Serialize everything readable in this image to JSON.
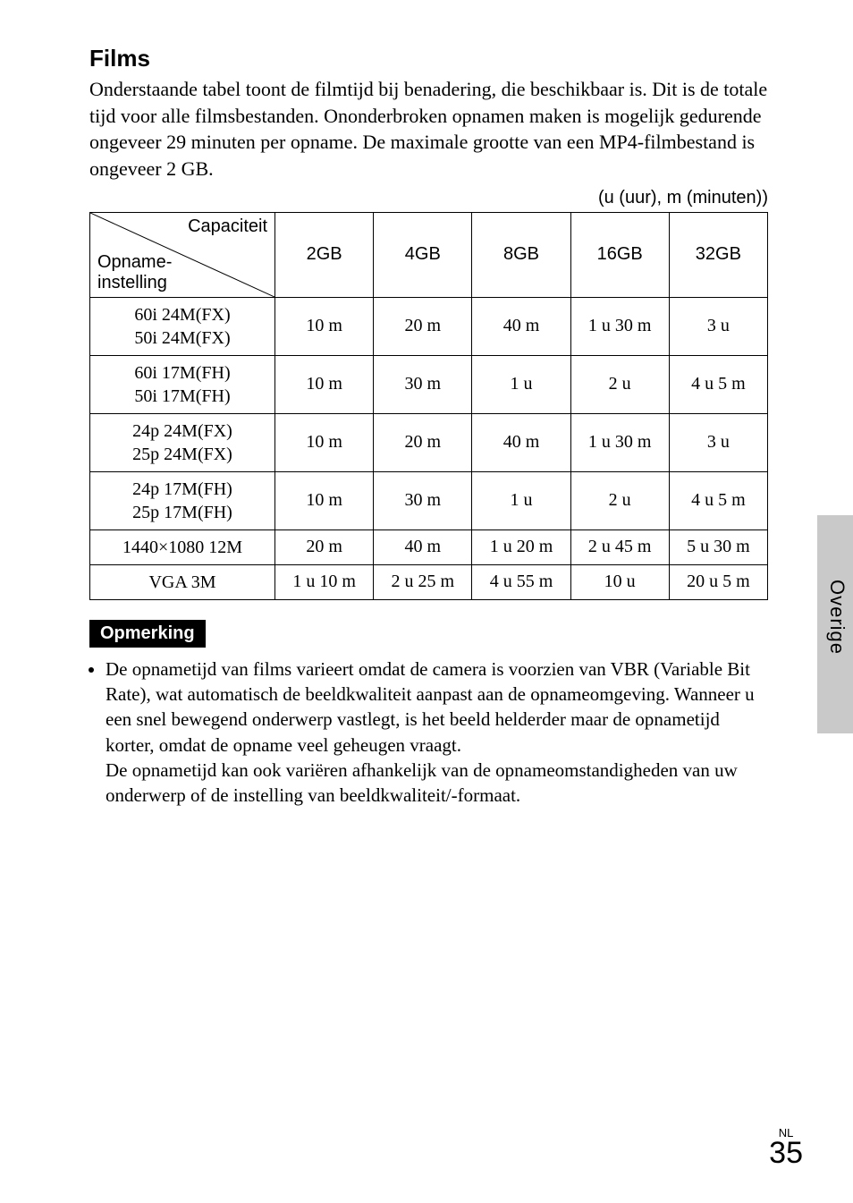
{
  "section": {
    "title": "Films",
    "intro": "Onderstaande tabel toont de filmtijd bij benadering, die beschikbaar is. Dit is de totale tijd voor alle filmsbestanden. Ononderbroken opnamen maken is mogelijk gedurende ongeveer 29 minuten per opname. De maximale grootte van een MP4-filmbestand is ongeveer 2 GB.",
    "units": "(u (uur), m (minuten))"
  },
  "table": {
    "diag_top": "Capaciteit",
    "diag_bottom_l1": "Opname-",
    "diag_bottom_l2": "instelling",
    "columns": [
      "2GB",
      "4GB",
      "8GB",
      "16GB",
      "32GB"
    ],
    "rows": [
      {
        "label_l1": "60i 24M(FX)",
        "label_l2": "50i 24M(FX)",
        "cells": [
          "10 m",
          "20 m",
          "40 m",
          "1 u 30 m",
          "3 u"
        ]
      },
      {
        "label_l1": "60i 17M(FH)",
        "label_l2": "50i 17M(FH)",
        "cells": [
          "10 m",
          "30 m",
          "1 u",
          "2 u",
          "4 u 5 m"
        ]
      },
      {
        "label_l1": "24p 24M(FX)",
        "label_l2": "25p 24M(FX)",
        "cells": [
          "10 m",
          "20 m",
          "40 m",
          "1 u 30 m",
          "3 u"
        ]
      },
      {
        "label_l1": "24p 17M(FH)",
        "label_l2": "25p 17M(FH)",
        "cells": [
          "10 m",
          "30 m",
          "1 u",
          "2 u",
          "4 u 5 m"
        ]
      },
      {
        "label_l1": "1440×1080 12M",
        "label_l2": "",
        "cells": [
          "20 m",
          "40 m",
          "1 u 20 m",
          "2 u 45 m",
          "5 u 30 m"
        ]
      },
      {
        "label_l1": "VGA 3M",
        "label_l2": "",
        "cells": [
          "1 u 10 m",
          "2 u 25 m",
          "4 u 55 m",
          "10 u",
          "20 u 5 m"
        ]
      }
    ]
  },
  "note": {
    "heading": "Opmerking",
    "body": "De opnametijd van films varieert omdat de camera is voorzien van VBR (Variable Bit Rate), wat automatisch de beeldkwaliteit aanpast aan de opnameomgeving. Wanneer u een snel bewegend onderwerp vastlegt, is het beeld helderder maar de opnametijd korter, omdat de opname veel geheugen vraagt.\nDe opnametijd kan ook variëren afhankelijk van de opnameomstandigheden van uw onderwerp of de instelling van beeldkwaliteit/-formaat."
  },
  "side": {
    "label": "Overige",
    "tab_color": "#c9c9c9"
  },
  "footer": {
    "lang": "NL",
    "page": "35"
  }
}
